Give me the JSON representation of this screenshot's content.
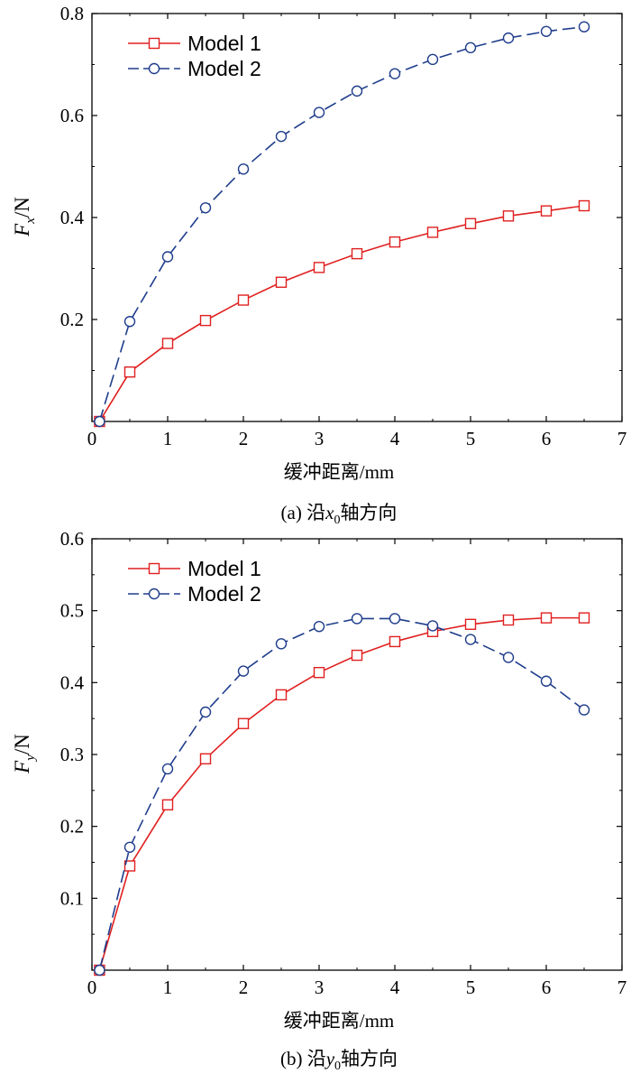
{
  "chart_data": [
    {
      "type": "line",
      "title": "",
      "caption_prefix": "(a) 沿",
      "caption_var": "x",
      "caption_sub": "0",
      "caption_suffix": "轴方向",
      "xlabel": "缓冲距离/mm",
      "ylabel_main": "F",
      "ylabel_sub": "x",
      "ylabel_unit": "/N",
      "xlim": [
        0,
        7
      ],
      "ylim": [
        0,
        0.8
      ],
      "xticks": [
        0,
        1,
        2,
        3,
        4,
        5,
        6,
        7
      ],
      "yticks": [
        0.2,
        0.4,
        0.6,
        0.8
      ],
      "ytick_labels": [
        "0.2",
        "0.4",
        "0.6",
        "0.8"
      ],
      "legend_position": "top-left",
      "x": [
        0.1,
        0.5,
        1.0,
        1.5,
        2.0,
        2.5,
        3.0,
        3.5,
        4.0,
        4.5,
        5.0,
        5.5,
        6.0,
        6.5
      ],
      "series": [
        {
          "name": "Model 1",
          "color": "#e02020",
          "marker": "square",
          "dash": "solid",
          "values": [
            0.0,
            0.097,
            0.153,
            0.198,
            0.238,
            0.273,
            0.302,
            0.329,
            0.352,
            0.371,
            0.388,
            0.403,
            0.413,
            0.423
          ]
        },
        {
          "name": "Model 2",
          "color": "#1f3d8c",
          "marker": "circle",
          "dash": "dashed",
          "values": [
            0.0,
            0.196,
            0.323,
            0.419,
            0.495,
            0.559,
            0.606,
            0.648,
            0.682,
            0.71,
            0.733,
            0.752,
            0.765,
            0.774
          ]
        }
      ]
    },
    {
      "type": "line",
      "title": "",
      "caption_prefix": "(b) 沿",
      "caption_var": "y",
      "caption_sub": "0",
      "caption_suffix": "轴方向",
      "xlabel": "缓冲距离/mm",
      "ylabel_main": "F",
      "ylabel_sub": "y",
      "ylabel_unit": "/N",
      "xlim": [
        0,
        7
      ],
      "ylim": [
        0,
        0.6
      ],
      "xticks": [
        0,
        1,
        2,
        3,
        4,
        5,
        6,
        7
      ],
      "yticks": [
        0.1,
        0.2,
        0.3,
        0.4,
        0.5,
        0.6
      ],
      "ytick_labels": [
        "0.1",
        "0.2",
        "0.3",
        "0.4",
        "0.5",
        "0.6"
      ],
      "legend_position": "top-left",
      "x": [
        0.1,
        0.5,
        1.0,
        1.5,
        2.0,
        2.5,
        3.0,
        3.5,
        4.0,
        4.5,
        5.0,
        5.5,
        6.0,
        6.5
      ],
      "series": [
        {
          "name": "Model 1",
          "color": "#e02020",
          "marker": "square",
          "dash": "solid",
          "values": [
            0.0,
            0.145,
            0.23,
            0.294,
            0.343,
            0.383,
            0.414,
            0.438,
            0.457,
            0.471,
            0.481,
            0.487,
            0.49,
            0.49
          ]
        },
        {
          "name": "Model 2",
          "color": "#1f3d8c",
          "marker": "circle",
          "dash": "dashed",
          "values": [
            0.0,
            0.171,
            0.28,
            0.359,
            0.416,
            0.454,
            0.478,
            0.489,
            0.489,
            0.479,
            0.46,
            0.435,
            0.402,
            0.362
          ]
        }
      ]
    }
  ]
}
